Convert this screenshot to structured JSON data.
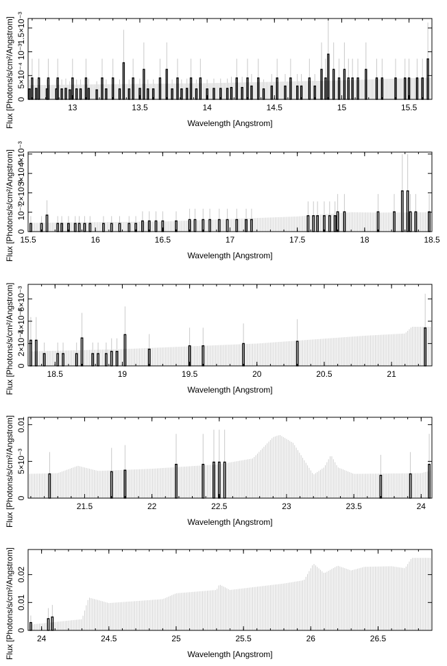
{
  "chart_data": [
    {
      "type": "bar",
      "panel": "1",
      "xlabel": "Wavelength [Angstrom]",
      "ylabel": "Flux [Photons/s/cm²/Angstrom]",
      "xlim": [
        12.67,
        15.67
      ],
      "ylim": [
        0,
        0.0017
      ],
      "xticks": [
        13,
        13.5,
        14,
        14.5,
        15,
        15.5
      ],
      "xtick_labels": [
        "13",
        "13.5",
        "14",
        "14.5",
        "15",
        "15.5"
      ],
      "yticks": [
        0,
        0.0005,
        0.001,
        0.0015
      ],
      "ytick_labels": [
        "0",
        "5×10⁻⁴",
        "10⁻³",
        "1.5×10⁻³"
      ],
      "bin_width": 0.01,
      "series": [
        {
          "style": "histogram",
          "x": [
            12.68,
            12.7,
            12.73,
            12.75,
            12.81,
            12.82,
            12.88,
            12.89,
            12.92,
            12.95,
            12.98,
            13.0,
            13.03,
            13.06,
            13.1,
            13.12,
            13.18,
            13.22,
            13.25,
            13.3,
            13.35,
            13.38,
            13.42,
            13.45,
            13.5,
            13.53,
            13.56,
            13.6,
            13.65,
            13.7,
            13.74,
            13.78,
            13.81,
            13.85,
            13.88,
            13.92,
            13.95,
            14.0,
            14.05,
            14.1,
            14.15,
            14.18,
            14.22,
            14.26,
            14.3,
            14.33,
            14.38,
            14.42,
            14.48,
            14.52,
            14.58,
            14.62,
            14.67,
            14.7,
            14.76,
            14.8,
            14.85,
            14.88,
            14.9,
            14.94,
            14.98,
            15.02,
            15.05,
            15.08,
            15.12,
            15.18,
            15.26,
            15.3,
            15.4,
            15.47,
            15.5,
            15.56,
            15.6,
            15.64
          ],
          "values": [
            0.00022,
            0.00045,
            0.00023,
            0.00045,
            0.00022,
            0.00045,
            0.00022,
            0.00045,
            0.00022,
            0.00023,
            0.0002,
            0.00045,
            0.00022,
            0.00022,
            0.00045,
            0.00023,
            0.0002,
            0.00045,
            0.00022,
            0.00045,
            0.00022,
            0.00077,
            0.00022,
            0.00045,
            0.00023,
            0.00063,
            0.00022,
            0.00022,
            0.00045,
            0.00063,
            0.00022,
            0.00045,
            0.00022,
            0.00023,
            0.00045,
            0.00022,
            0.00045,
            0.00022,
            0.00023,
            0.00023,
            0.00023,
            0.00025,
            0.00045,
            0.00025,
            0.00045,
            0.00028,
            0.00045,
            0.00022,
            0.00028,
            0.00045,
            0.00028,
            0.00045,
            0.00028,
            0.00028,
            0.00045,
            0.00028,
            0.00063,
            0.00045,
            0.00095,
            0.00063,
            0.00045,
            0.00063,
            0.00045,
            0.00045,
            0.00045,
            0.00063,
            0.00045,
            0.00045,
            0.00045,
            0.00045,
            0.00045,
            0.00045,
            0.00045,
            0.00085
          ]
        },
        {
          "style": "model-errorbars",
          "x_start": 12.67,
          "x_end": 15.67,
          "step": 0.01,
          "values_at": [
            12.67,
            14.0,
            15.0,
            15.67
          ],
          "values": [
            0.0003,
            0.00034,
            0.0004,
            0.00046
          ]
        }
      ]
    },
    {
      "type": "bar",
      "panel": "2",
      "xlabel": "Wavelength [Angstrom]",
      "ylabel": "Flux [Photons/s/cm²/Angstrom]",
      "xlim": [
        15.5,
        18.5
      ],
      "ylim": [
        0,
        0.0041
      ],
      "xticks": [
        15.5,
        16,
        16.5,
        17,
        17.5,
        18,
        18.5
      ],
      "xtick_labels": [
        "15.5",
        "16",
        "16.5",
        "17",
        "17.5",
        "18",
        "18.5"
      ],
      "yticks": [
        0,
        0.001,
        0.002,
        0.003,
        0.004
      ],
      "ytick_labels": [
        "0",
        "10⁻³",
        "2×10⁻³",
        "3×10⁻³",
        "4×10⁻³"
      ],
      "bin_width": 0.012,
      "series": [
        {
          "style": "histogram",
          "x": [
            15.52,
            15.6,
            15.64,
            15.72,
            15.75,
            15.8,
            15.85,
            15.88,
            15.92,
            15.96,
            16.06,
            16.12,
            16.18,
            16.25,
            16.3,
            16.35,
            16.4,
            16.45,
            16.5,
            16.6,
            16.7,
            16.74,
            16.8,
            16.85,
            16.92,
            16.98,
            17.05,
            17.12,
            17.16,
            17.58,
            17.62,
            17.65,
            17.7,
            17.74,
            17.78,
            17.8,
            17.85,
            18.1,
            18.22,
            18.28,
            18.32,
            18.34,
            18.38,
            18.48
          ],
          "values": [
            0.00042,
            0.00042,
            0.00085,
            0.00042,
            0.00042,
            0.00042,
            0.00042,
            0.00042,
            0.00042,
            0.00042,
            0.00042,
            0.00042,
            0.00042,
            0.00042,
            0.00042,
            0.00055,
            0.00055,
            0.00055,
            0.00055,
            0.00055,
            0.00062,
            0.00062,
            0.00062,
            0.00062,
            0.00062,
            0.00062,
            0.00062,
            0.00062,
            0.00062,
            0.00082,
            0.00082,
            0.00082,
            0.00082,
            0.00082,
            0.00082,
            0.00102,
            0.00102,
            0.00102,
            0.00102,
            0.0021,
            0.0021,
            0.00102,
            0.00102,
            0.00102
          ]
        },
        {
          "style": "model-errorbars",
          "x_start": 15.5,
          "x_end": 18.5,
          "step": 0.012,
          "values_at": [
            15.5,
            16.5,
            17.5,
            17.9,
            18.1,
            18.5
          ],
          "values": [
            0.00045,
            0.00052,
            0.00078,
            0.001,
            0.00098,
            0.001
          ]
        }
      ]
    },
    {
      "type": "bar",
      "panel": "3",
      "xlabel": "Wavelength [Angstrom]",
      "ylabel": "Flux [Photons/s/cm²/Angstrom]",
      "xlim": [
        18.3,
        21.3
      ],
      "ylim": [
        0,
        0.0073
      ],
      "xticks": [
        18.5,
        19,
        19.5,
        20,
        20.5,
        21
      ],
      "xtick_labels": [
        "18.5",
        "19",
        "19.5",
        "20",
        "20.5",
        "21"
      ],
      "yticks": [
        0,
        0.002,
        0.004,
        0.006
      ],
      "ytick_labels": [
        "0",
        "2×10⁻³",
        "4×10⁻³",
        "6×10⁻³"
      ],
      "bin_width": 0.012,
      "series": [
        {
          "style": "histogram",
          "x": [
            18.32,
            18.36,
            18.42,
            18.52,
            18.56,
            18.66,
            18.7,
            18.78,
            18.82,
            18.88,
            18.92,
            18.96,
            19.02,
            19.2,
            19.5,
            19.6,
            19.9,
            20.3,
            21.25
          ],
          "values": [
            0.0023,
            0.0023,
            0.0011,
            0.0011,
            0.0011,
            0.0011,
            0.0025,
            0.0011,
            0.0011,
            0.0011,
            0.0013,
            0.0013,
            0.0028,
            0.0015,
            0.0018,
            0.0018,
            0.002,
            0.0022,
            0.0034
          ]
        },
        {
          "style": "model-errorbars",
          "x_start": 18.3,
          "x_end": 21.3,
          "step": 0.012,
          "values_at": [
            18.3,
            19.0,
            20.0,
            20.8,
            21.1,
            21.15,
            21.3
          ],
          "values": [
            0.0013,
            0.0015,
            0.002,
            0.0027,
            0.0029,
            0.0035,
            0.0035
          ]
        }
      ]
    },
    {
      "type": "bar",
      "panel": "4",
      "xlabel": "Wavelength [Angstrom]",
      "ylabel": "Flux [Photons/s/cm²/Angstrom]",
      "xlim": [
        21.08,
        24.08
      ],
      "ylim": [
        0,
        0.011
      ],
      "xticks": [
        21.5,
        22,
        22.5,
        23,
        23.5,
        24
      ],
      "xtick_labels": [
        "21.5",
        "22",
        "22.5",
        "23",
        "23.5",
        "24"
      ],
      "yticks": [
        0,
        0.005,
        0.01
      ],
      "ytick_labels": [
        "0",
        "5×10⁻³",
        "0.01"
      ],
      "bin_width": 0.012,
      "series": [
        {
          "style": "histogram",
          "x": [
            21.24,
            21.7,
            21.8,
            22.18,
            22.38,
            22.46,
            22.5,
            22.54,
            23.7,
            23.92,
            24.06
          ],
          "values": [
            0.0033,
            0.0036,
            0.0038,
            0.0046,
            0.0046,
            0.0049,
            0.0049,
            0.0049,
            0.0031,
            0.0033,
            0.0046
          ]
        },
        {
          "style": "model-errorbars",
          "x_start": 21.08,
          "x_end": 24.08,
          "step": 0.012,
          "values_at": [
            21.08,
            21.3,
            21.45,
            21.6,
            22.0,
            22.5,
            22.75,
            22.9,
            22.95,
            23.05,
            23.2,
            23.28,
            23.33,
            23.38,
            23.5,
            24.0,
            24.08
          ],
          "values": [
            0.0033,
            0.0034,
            0.0044,
            0.0037,
            0.004,
            0.0046,
            0.0054,
            0.0083,
            0.0086,
            0.0075,
            0.0032,
            0.0042,
            0.0059,
            0.0042,
            0.0033,
            0.0034,
            0.0038
          ]
        }
      ]
    },
    {
      "type": "bar",
      "panel": "5",
      "xlabel": "Wavelength [Angstrom]",
      "ylabel": "Flux [Photons/s/cm²/Angstrom]",
      "xlim": [
        23.9,
        26.9
      ],
      "ylim": [
        0,
        0.029
      ],
      "xticks": [
        24,
        24.5,
        25,
        25.5,
        26,
        26.5
      ],
      "xtick_labels": [
        "24",
        "24.5",
        "25",
        "25.5",
        "26",
        "26.5"
      ],
      "yticks": [
        0,
        0.01,
        0.02
      ],
      "ytick_labels": [
        "0",
        "0.01",
        "0.02"
      ],
      "bin_width": 0.012,
      "series": [
        {
          "style": "histogram",
          "x": [
            23.92,
            24.05,
            24.08
          ],
          "values": [
            0.0028,
            0.0042,
            0.0048
          ]
        },
        {
          "style": "model-errorbars",
          "x_start": 23.9,
          "x_end": 26.9,
          "step": 0.012,
          "values_at": [
            23.9,
            24.3,
            24.35,
            24.5,
            24.9,
            25.0,
            25.3,
            25.32,
            25.4,
            25.8,
            25.95,
            26.02,
            26.1,
            26.2,
            26.3,
            26.4,
            26.6,
            26.7,
            26.75,
            26.9
          ],
          "values": [
            0.002,
            0.004,
            0.0118,
            0.0098,
            0.0112,
            0.0133,
            0.0145,
            0.0165,
            0.0145,
            0.0168,
            0.018,
            0.024,
            0.0205,
            0.0232,
            0.0215,
            0.0228,
            0.023,
            0.0223,
            0.026,
            0.026
          ]
        }
      ]
    }
  ]
}
